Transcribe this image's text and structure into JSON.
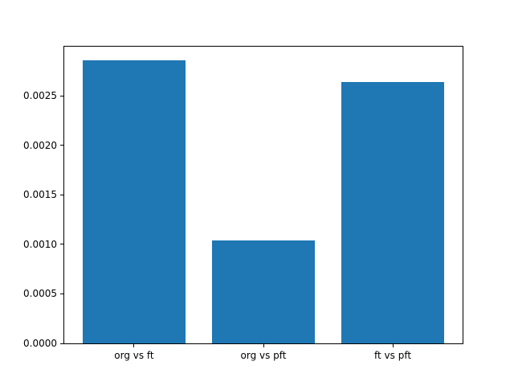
{
  "chart_data": {
    "type": "bar",
    "title": "",
    "xlabel": "",
    "ylabel": "",
    "categories": [
      "org vs ft",
      "org vs pft",
      "ft vs pft"
    ],
    "values": [
      0.00286,
      0.00104,
      0.00264
    ],
    "ylim": [
      0,
      0.003
    ],
    "xlim": [
      -0.54,
      2.54
    ],
    "yticks": [
      0.0,
      0.0005,
      0.001,
      0.0015,
      0.002,
      0.0025
    ],
    "ytick_labels": [
      "0.0000",
      "0.0005",
      "0.0010",
      "0.0015",
      "0.0020",
      "0.0025"
    ],
    "bar_width_fraction": 0.8,
    "bar_color": "#1f77b4",
    "grid": false,
    "legend": null,
    "background_color": "#ffffff",
    "spine_color": "#000000",
    "text_color": "#000000"
  }
}
